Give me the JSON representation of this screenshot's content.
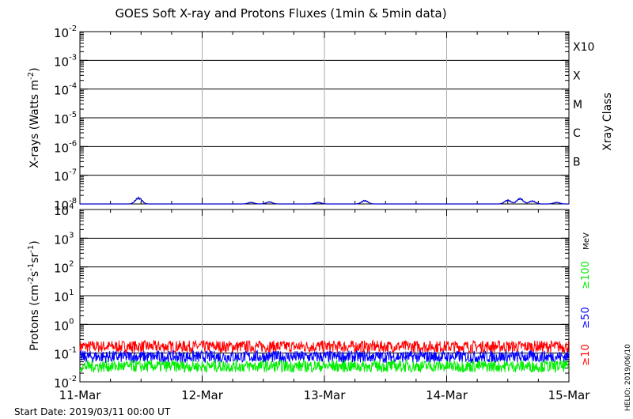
{
  "title": "GOES Soft X-ray and Protons Fluxes   (1min & 5min data)",
  "start_date": "Start Date: 2019/03/11 00:00 UT",
  "credit": "HELIO: 2019/06/10",
  "colors": {
    "xray": "#0000cc",
    "p10": "#ff0000",
    "p50": "#0000ff",
    "p100": "#00ee00",
    "grid": "#000000",
    "vgrid": "#aaaaaa"
  },
  "chart_data": [
    {
      "type": "line",
      "panel": "xray",
      "ylabel": "X-rays (Watts m⁻²)",
      "ylabel_base": "X-rays (Watts m",
      "ylabel_sup": "-2",
      "ylabel_end": ")",
      "yscale": "log",
      "ylim_exp": [
        -8,
        -2
      ],
      "ytick_exponents": [
        -8,
        -7,
        -6,
        -5,
        -4,
        -3,
        -2
      ],
      "right_label": "Xray Class",
      "classes": [
        {
          "label": "B",
          "exp": -7
        },
        {
          "label": "C",
          "exp": -6
        },
        {
          "label": "M",
          "exp": -5
        },
        {
          "label": "X",
          "exp": -4
        },
        {
          "label": "X10",
          "exp": -3
        }
      ],
      "series": [
        {
          "color": "#0000cc",
          "baseline": 1e-08,
          "bumps": [
            {
              "day": 0.48,
              "peak": 1.7e-08
            },
            {
              "day": 1.4,
              "peak": 1.15e-08
            },
            {
              "day": 1.55,
              "peak": 1.2e-08
            },
            {
              "day": 1.95,
              "peak": 1.15e-08
            },
            {
              "day": 2.33,
              "peak": 1.35e-08
            },
            {
              "day": 3.5,
              "peak": 1.4e-08
            },
            {
              "day": 3.6,
              "peak": 1.6e-08
            },
            {
              "day": 3.7,
              "peak": 1.3e-08
            },
            {
              "day": 3.9,
              "peak": 1.15e-08
            }
          ]
        }
      ]
    },
    {
      "type": "line",
      "panel": "protons",
      "ylabel": "Protons (cm⁻²s⁻¹sr⁻¹)",
      "ylabel_base": "Protons (cm",
      "ylabel_sup1": "-2",
      "ylabel_mid1": "s",
      "ylabel_sup2": "-1",
      "ylabel_mid2": "sr",
      "ylabel_sup3": "-1",
      "ylabel_end": ")",
      "yscale": "log",
      "ylim_exp": [
        -2,
        4
      ],
      "ytick_exponents": [
        -2,
        -1,
        0,
        1,
        2,
        3,
        4
      ],
      "threshold": 10,
      "energy_unit": "MeV",
      "series": [
        {
          "name": "≥10",
          "color": "#ff0000",
          "level": 0.17
        },
        {
          "name": "≥50",
          "color": "#0000ff",
          "level": 0.075
        },
        {
          "name": "≥100",
          "color": "#00ee00",
          "level": 0.035
        }
      ]
    }
  ],
  "x_axis": {
    "categories": [
      "11-Mar",
      "12-Mar",
      "13-Mar",
      "14-Mar",
      "15-Mar"
    ],
    "range_days": [
      0,
      4
    ]
  }
}
